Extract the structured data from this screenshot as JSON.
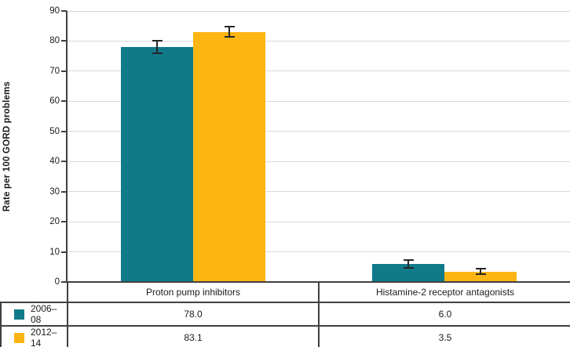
{
  "chart_data": {
    "type": "bar",
    "title": "",
    "xlabel": "",
    "ylabel": "Rate per 100 GORD problems",
    "ylim": [
      0,
      90
    ],
    "yticks": [
      0,
      10,
      20,
      30,
      40,
      50,
      60,
      70,
      80,
      90
    ],
    "grid": true,
    "legend_position": "bottom table",
    "categories": [
      "Proton pump inhibitors",
      "Histamine-2 receptor antagonists"
    ],
    "series": [
      {
        "name": "2006–08",
        "color": "#107A89",
        "values": [
          78.0,
          6.0
        ],
        "errors": [
          2.0,
          1.3
        ],
        "display_values": [
          "78.0",
          "6.0"
        ]
      },
      {
        "name": "2012–14",
        "color": "#FDB513",
        "values": [
          83.1,
          3.5
        ],
        "errors": [
          1.8,
          1.0
        ],
        "display_values": [
          "83.1",
          "3.5"
        ]
      }
    ]
  },
  "colors": {
    "grid": "#D9D9D9",
    "axis": "#404040",
    "error_bar": "#262626",
    "text": "#1A1A1A"
  }
}
